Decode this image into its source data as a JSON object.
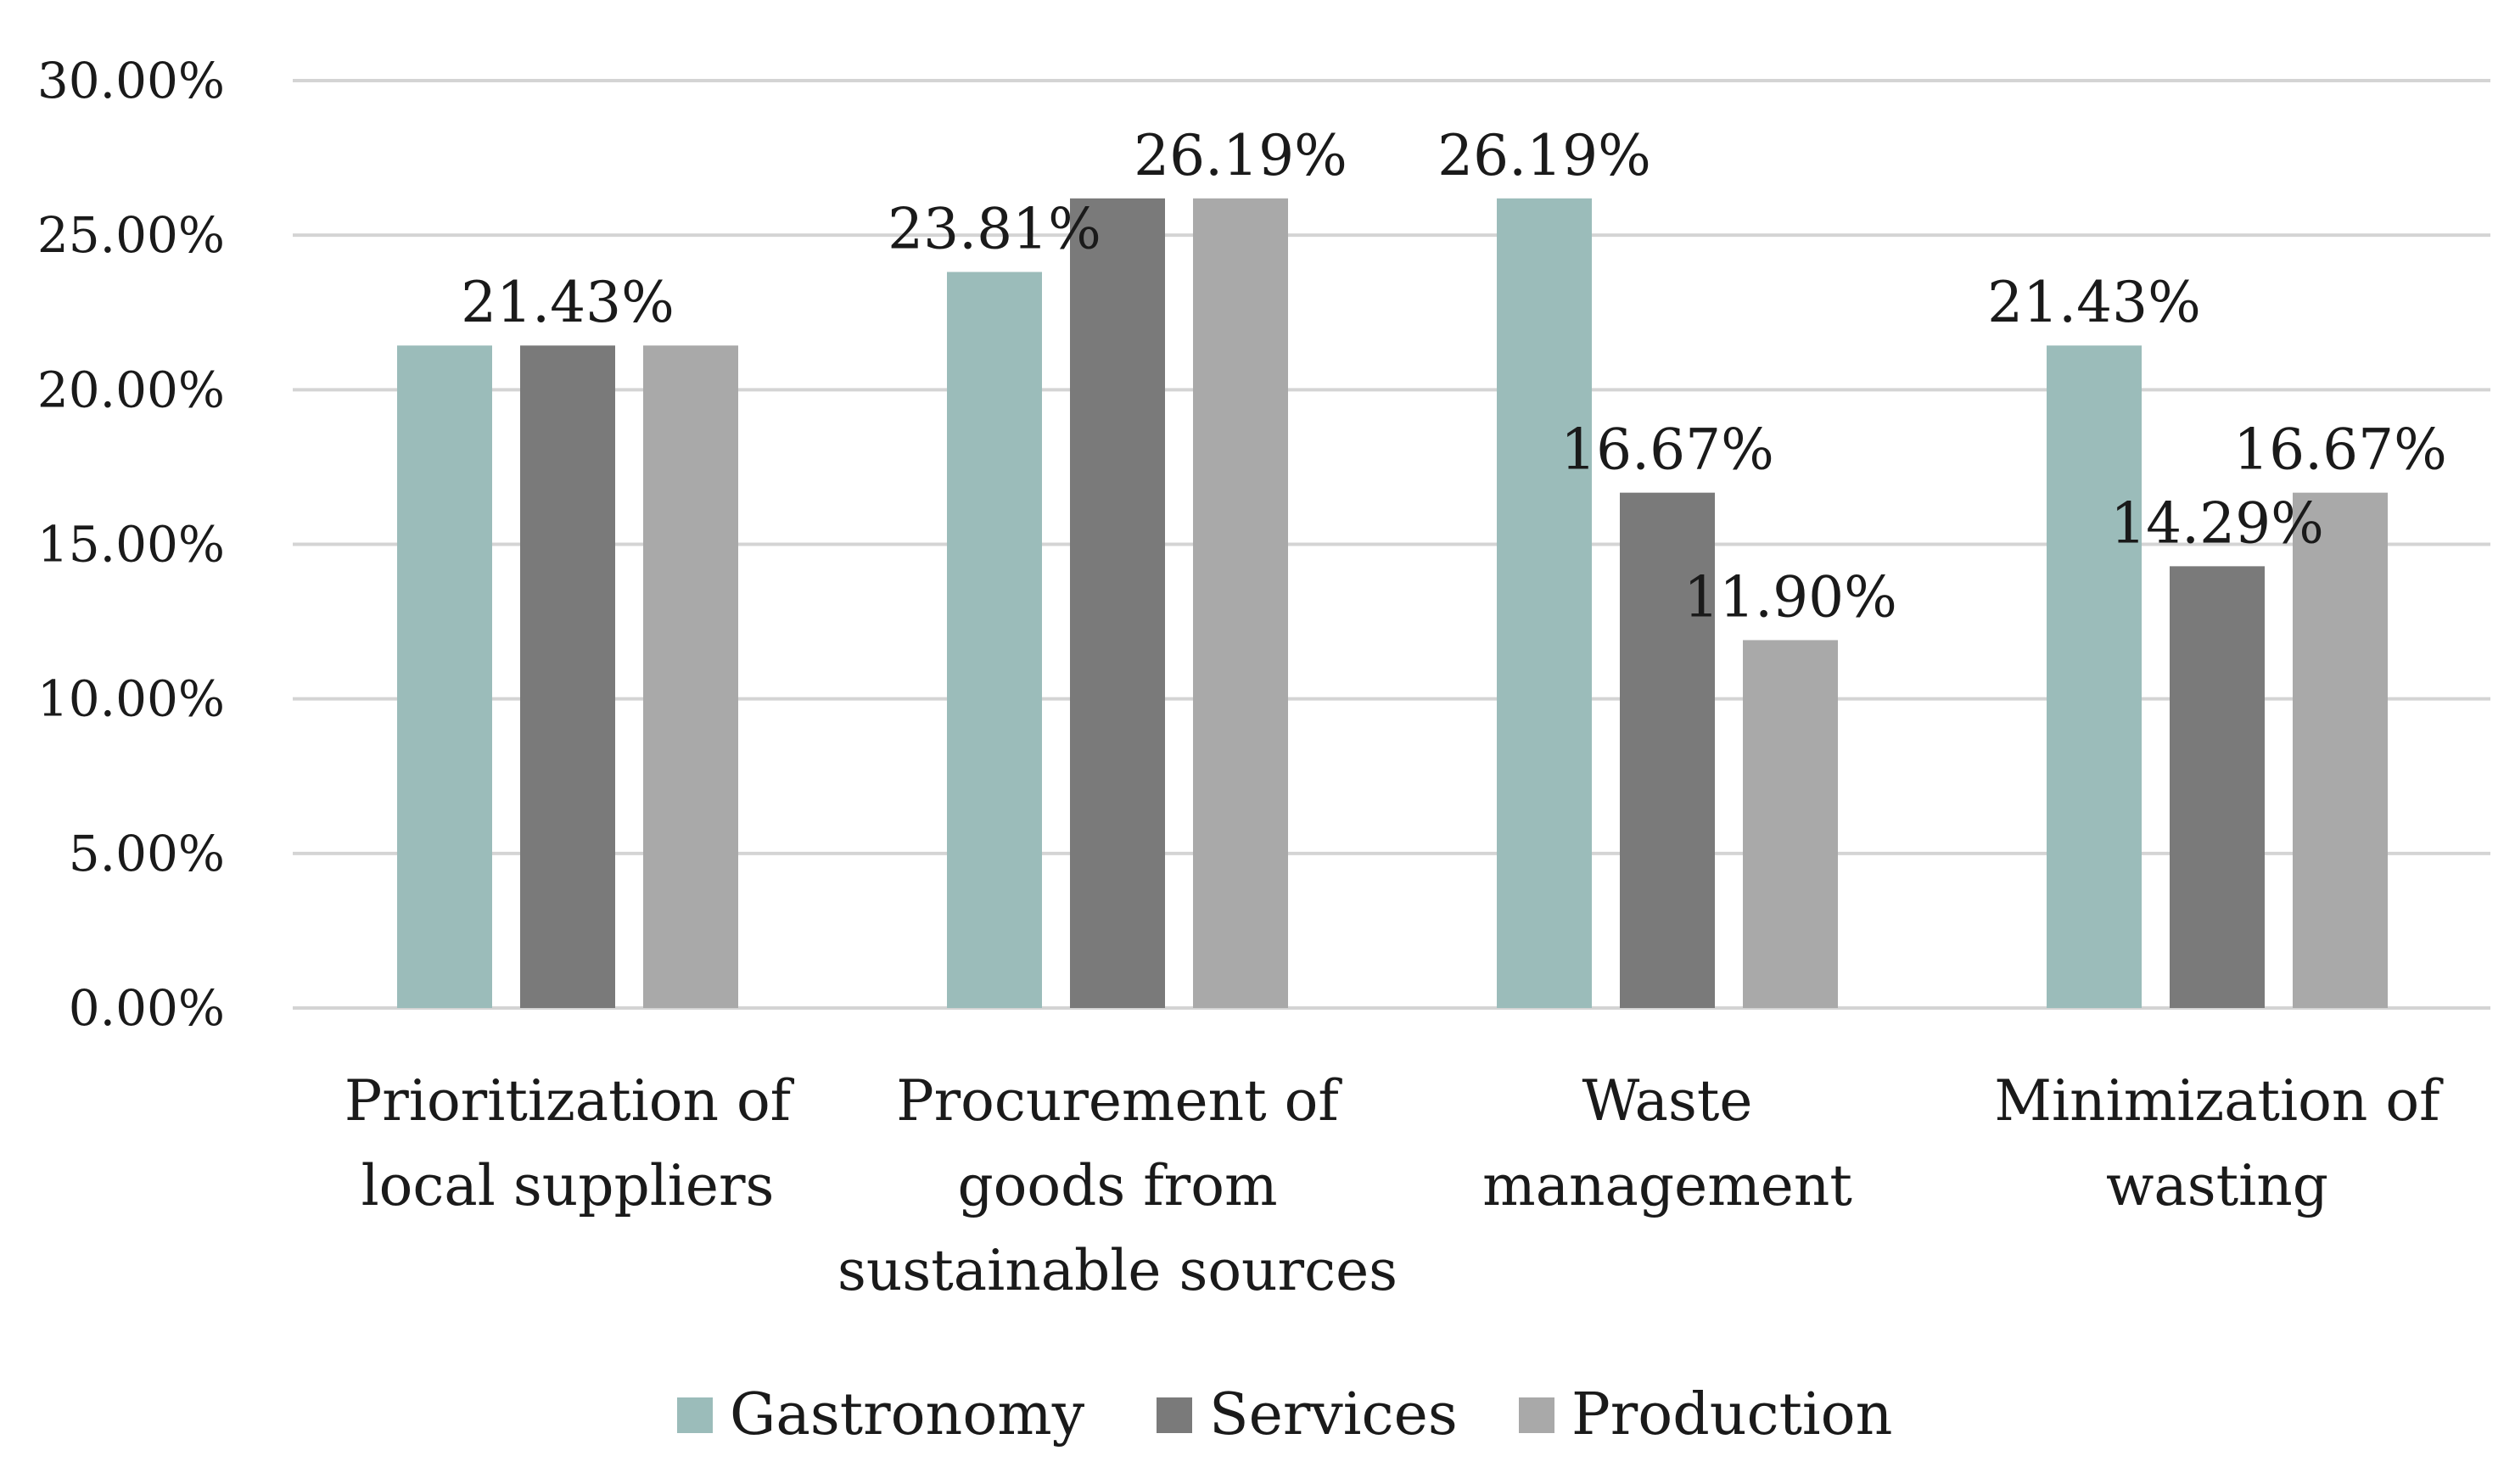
{
  "chart_data": {
    "type": "bar",
    "title": "",
    "xlabel": "",
    "ylabel": "",
    "ylim": [
      0,
      30
    ],
    "y_ticks": [
      "0.00%",
      "5.00%",
      "10.00%",
      "15.00%",
      "20.00%",
      "25.00%",
      "30.00%"
    ],
    "grid": true,
    "legend_position": "bottom",
    "categories": [
      [
        "Prioritization of",
        "local suppliers"
      ],
      [
        "Procurement of",
        "goods from",
        "sustainable sources"
      ],
      [
        "Waste",
        "management"
      ],
      [
        "Minimization of",
        "wasting"
      ]
    ],
    "series": [
      {
        "name": "Gastronomy",
        "color": "#9bbcba",
        "values": [
          21.43,
          23.81,
          26.19,
          21.43
        ]
      },
      {
        "name": "Services",
        "color": "#7a7a7a",
        "values": [
          21.43,
          26.19,
          16.67,
          14.29
        ]
      },
      {
        "name": "Production",
        "color": "#a9a9a9",
        "values": [
          21.43,
          26.19,
          11.9,
          16.67
        ]
      }
    ],
    "data_labels": [
      {
        "category": 0,
        "series": 1,
        "text": "21.43%"
      },
      {
        "category": 1,
        "series": 0,
        "text": "23.81%"
      },
      {
        "category": 1,
        "series": 2,
        "text": "26.19%"
      },
      {
        "category": 2,
        "series": 0,
        "text": "26.19%"
      },
      {
        "category": 2,
        "series": 1,
        "text": "16.67%"
      },
      {
        "category": 2,
        "series": 2,
        "text": "11.90%"
      },
      {
        "category": 3,
        "series": 0,
        "text": "21.43%"
      },
      {
        "category": 3,
        "series": 1,
        "text": "14.29%"
      },
      {
        "category": 3,
        "series": 2,
        "text": "16.67%"
      }
    ]
  }
}
